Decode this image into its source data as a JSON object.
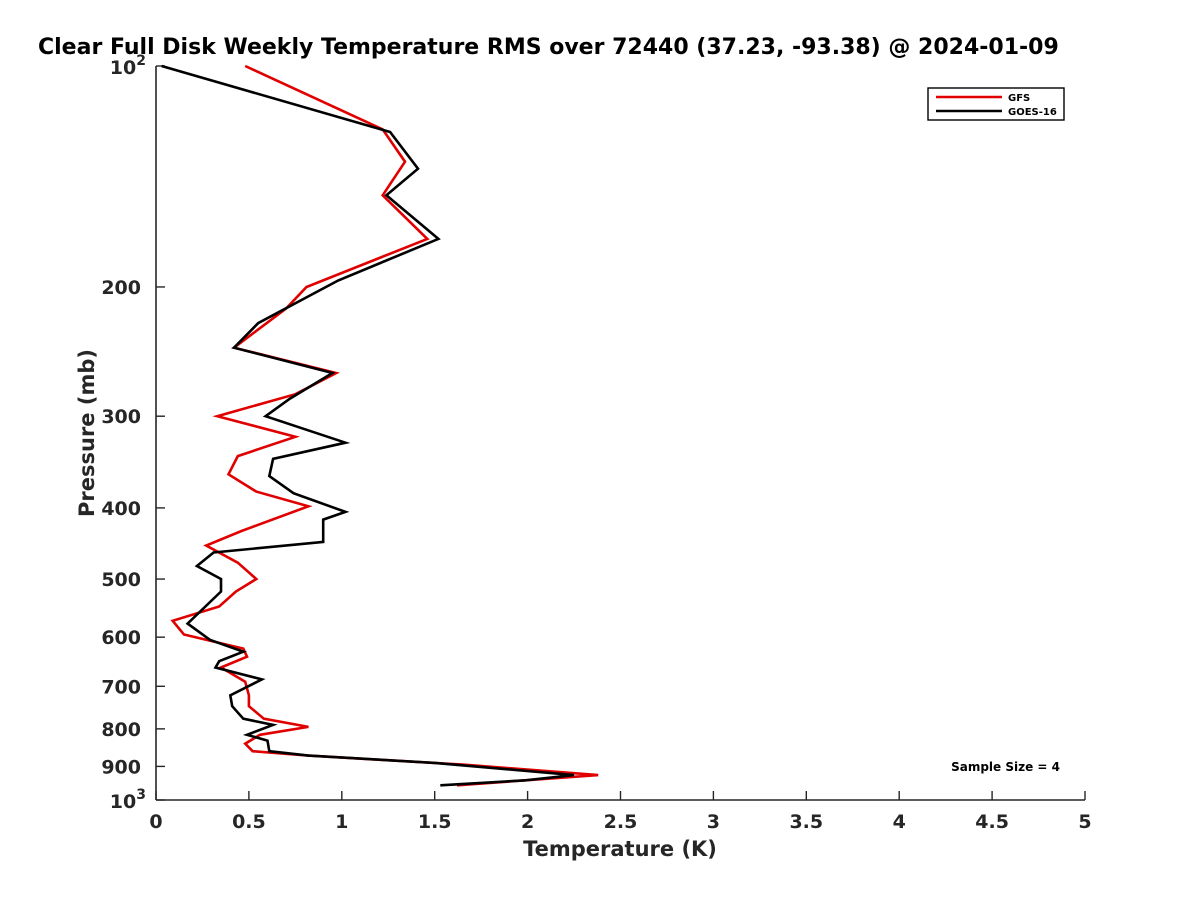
{
  "chart_data": {
    "type": "line",
    "title": "Clear Full Disk Weekly Temperature RMS over 72440 (37.23, -93.38) @ 2024-01-09",
    "xlabel": "Temperature (K)",
    "ylabel": "Pressure (mb)",
    "xlim": [
      0,
      5
    ],
    "ylim": [
      100,
      1000
    ],
    "y_scale": "log",
    "y_reversed": true,
    "grid": false,
    "legend_position": "top-right",
    "x_ticks": [
      {
        "value": 0,
        "label": "0"
      },
      {
        "value": 0.5,
        "label": "0.5"
      },
      {
        "value": 1,
        "label": "1"
      },
      {
        "value": 1.5,
        "label": "1.5"
      },
      {
        "value": 2,
        "label": "2"
      },
      {
        "value": 2.5,
        "label": "2.5"
      },
      {
        "value": 3,
        "label": "3"
      },
      {
        "value": 3.5,
        "label": "3.5"
      },
      {
        "value": 4,
        "label": "4"
      },
      {
        "value": 4.5,
        "label": "4.5"
      },
      {
        "value": 5,
        "label": "5"
      }
    ],
    "y_ticks": [
      {
        "value": 100,
        "base": "10",
        "exp": "2"
      },
      {
        "value": 200,
        "label": "200"
      },
      {
        "value": 300,
        "label": "300"
      },
      {
        "value": 400,
        "label": "400"
      },
      {
        "value": 500,
        "label": "500"
      },
      {
        "value": 600,
        "label": "600"
      },
      {
        "value": 700,
        "label": "700"
      },
      {
        "value": 800,
        "label": "800"
      },
      {
        "value": 900,
        "label": "900"
      },
      {
        "value": 1000,
        "base": "10",
        "exp": "3"
      }
    ],
    "series": [
      {
        "name": "GFS",
        "color": "#e00000",
        "points": [
          [
            0.48,
            100
          ],
          [
            1.22,
            122
          ],
          [
            1.34,
            135
          ],
          [
            1.22,
            150
          ],
          [
            1.46,
            172
          ],
          [
            0.81,
            200
          ],
          [
            0.7,
            214
          ],
          [
            0.42,
            242
          ],
          [
            0.97,
            262
          ],
          [
            0.75,
            280
          ],
          [
            0.33,
            300
          ],
          [
            0.75,
            320
          ],
          [
            0.44,
            340
          ],
          [
            0.39,
            360
          ],
          [
            0.54,
            380
          ],
          [
            0.82,
            398
          ],
          [
            0.46,
            430
          ],
          [
            0.27,
            450
          ],
          [
            0.44,
            475
          ],
          [
            0.54,
            500
          ],
          [
            0.43,
            520
          ],
          [
            0.34,
            545
          ],
          [
            0.09,
            570
          ],
          [
            0.15,
            595
          ],
          [
            0.47,
            622
          ],
          [
            0.49,
            638
          ],
          [
            0.35,
            660
          ],
          [
            0.48,
            690
          ],
          [
            0.5,
            720
          ],
          [
            0.5,
            745
          ],
          [
            0.58,
            775
          ],
          [
            0.82,
            795
          ],
          [
            0.56,
            815
          ],
          [
            0.48,
            838
          ],
          [
            0.52,
            858
          ],
          [
            0.82,
            870
          ],
          [
            1.65,
            895
          ],
          [
            2.38,
            925
          ],
          [
            1.62,
            955
          ]
        ]
      },
      {
        "name": "GOES-16",
        "color": "#000000",
        "points": [
          [
            0.03,
            100
          ],
          [
            1.26,
            123
          ],
          [
            1.41,
            138
          ],
          [
            1.24,
            150
          ],
          [
            1.52,
            172
          ],
          [
            0.98,
            196
          ],
          [
            0.55,
            224
          ],
          [
            0.42,
            242
          ],
          [
            0.95,
            262
          ],
          [
            0.72,
            284
          ],
          [
            0.59,
            300
          ],
          [
            1.02,
            326
          ],
          [
            0.63,
            343
          ],
          [
            0.61,
            362
          ],
          [
            0.74,
            382
          ],
          [
            1.02,
            405
          ],
          [
            0.9,
            415
          ],
          [
            0.9,
            445
          ],
          [
            0.31,
            460
          ],
          [
            0.22,
            480
          ],
          [
            0.35,
            500
          ],
          [
            0.35,
            520
          ],
          [
            0.17,
            575
          ],
          [
            0.29,
            605
          ],
          [
            0.47,
            628
          ],
          [
            0.34,
            647
          ],
          [
            0.32,
            660
          ],
          [
            0.57,
            685
          ],
          [
            0.4,
            720
          ],
          [
            0.41,
            745
          ],
          [
            0.47,
            775
          ],
          [
            0.63,
            790
          ],
          [
            0.49,
            815
          ],
          [
            0.6,
            830
          ],
          [
            0.61,
            858
          ],
          [
            0.82,
            870
          ],
          [
            1.5,
            890
          ],
          [
            2.25,
            925
          ],
          [
            1.99,
            940
          ],
          [
            1.53,
            955
          ]
        ]
      }
    ],
    "annotation": "Sample Size = 4"
  }
}
